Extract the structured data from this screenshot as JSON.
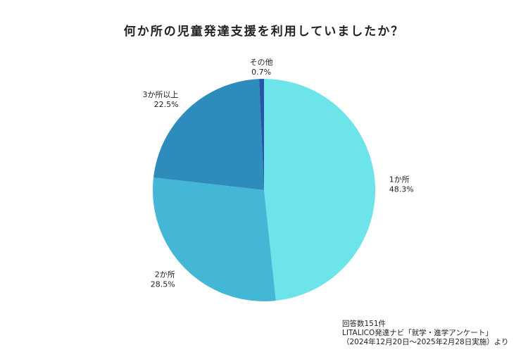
{
  "title": "何か所の児童発達支援を利用していましたか？",
  "chart_data": {
    "type": "pie",
    "title": "何か所の児童発達支援を利用していましたか？",
    "slices": [
      {
        "label": "1か所",
        "value": 48.3,
        "value_label": "48.3%",
        "color": "#6de4ea"
      },
      {
        "label": "2か所",
        "value": 28.5,
        "value_label": "28.5%",
        "color": "#43b7d5"
      },
      {
        "label": "3か所以上",
        "value": 22.5,
        "value_label": "22.5%",
        "color": "#2e8cbc"
      },
      {
        "label": "その他",
        "value": 0.7,
        "value_label": "0.7%",
        "color": "#2a55a6"
      }
    ],
    "start": "12 o'clock",
    "direction": "clockwise"
  },
  "source": {
    "line1": "回答数151件",
    "line2": "LITALICO発達ナビ「就学・進学アンケート」",
    "line3": "（2024年12月20日～2025年2月28日実施）より"
  }
}
